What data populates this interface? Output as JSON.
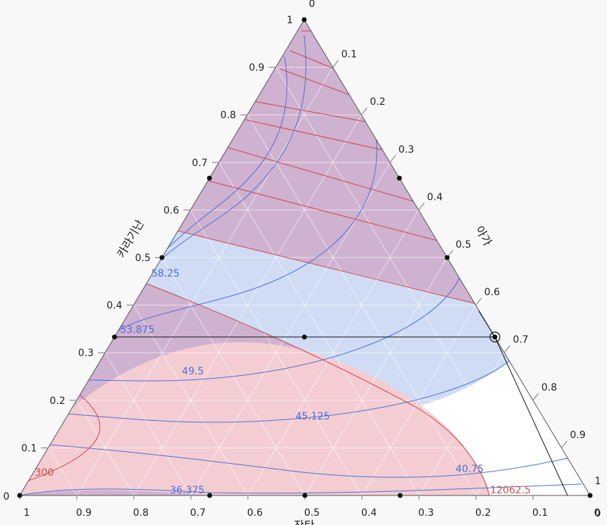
{
  "chart_data": {
    "type": "ternary-contour",
    "axes": {
      "left": {
        "title": "카라기난",
        "ticks": [
          "0",
          "0.1",
          "0.2",
          "0.3",
          "0.4",
          "0.5",
          "0.6",
          "0.7",
          "0.8",
          "0.9",
          "1"
        ]
      },
      "right": {
        "title": "아가",
        "ticks": [
          "1",
          "0.9",
          "0.8",
          "0.7",
          "0.6",
          "0.5",
          "0.4",
          "0.3",
          "0.2",
          "0.1",
          "0"
        ]
      },
      "bottom": {
        "title": "잔탄",
        "ticks": [
          "1",
          "0.9",
          "0.8",
          "0.7",
          "0.6",
          "0.5",
          "0.4",
          "0.3",
          "0.2",
          "0.1",
          "0"
        ]
      },
      "corner_labels": {
        "top": "0",
        "right": "1",
        "bottom_right": "0",
        "bottom_left": "0"
      }
    },
    "grid": true,
    "design_points": [
      {
        "carrageenan": 0.0,
        "agar": 0.0,
        "xanthan": 1.0
      },
      {
        "carrageenan": 0.0,
        "agar": 1.0,
        "xanthan": 0.0
      },
      {
        "carrageenan": 1.0,
        "agar": 0.0,
        "xanthan": 0.0
      },
      {
        "carrageenan": 0.0,
        "agar": 0.5,
        "xanthan": 0.5
      },
      {
        "carrageenan": 0.5,
        "agar": 0.0,
        "xanthan": 0.5
      },
      {
        "carrageenan": 0.5,
        "agar": 0.5,
        "xanthan": 0.0
      },
      {
        "carrageenan": 0.0,
        "agar": 0.333,
        "xanthan": 0.667
      },
      {
        "carrageenan": 0.0,
        "agar": 0.667,
        "xanthan": 0.333
      },
      {
        "carrageenan": 0.333,
        "agar": 0.0,
        "xanthan": 0.667
      },
      {
        "carrageenan": 0.667,
        "agar": 0.0,
        "xanthan": 0.333
      },
      {
        "carrageenan": 0.333,
        "agar": 0.667,
        "xanthan": 0.0
      },
      {
        "carrageenan": 0.667,
        "agar": 0.333,
        "xanthan": 0.0
      },
      {
        "carrageenan": 0.333,
        "agar": 0.333,
        "xanthan": 0.333
      }
    ],
    "crosshair": {
      "carrageenan": 0.333,
      "agar": 0.667,
      "xanthan": 0.0
    },
    "blue_contour_labels": [
      "58.25",
      "53.875",
      "49.5",
      "45.125",
      "40.75",
      "36.375"
    ],
    "red_contour_labels": [
      "300",
      "12062.5"
    ],
    "colors": {
      "blue_line": "#4a6fd6",
      "red_line": "#d0404a",
      "purple_fill": "#c9a9c9",
      "blue_fill": "#cfdcf4",
      "pink_fill": "#f4cdd2",
      "grid": "#ffffff",
      "axis": "#444444"
    }
  }
}
